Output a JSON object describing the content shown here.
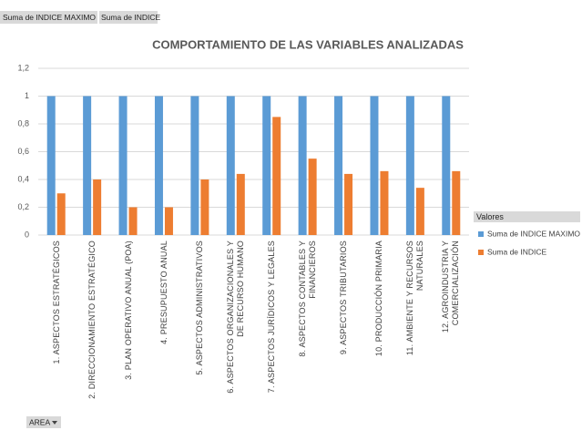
{
  "field_buttons": [
    "Suma de INDICE MAXIMO",
    "Suma de INDICE"
  ],
  "axis_field_button": "AREA",
  "chart_data": {
    "type": "bar",
    "title": "COMPORTAMIENTO DE LAS VARIABLES ANALIZADAS",
    "categories": [
      "1. ASPECTOS ESTRATÉGICOS",
      "2. DIRECCIONAMIENTO ESTRATÉGICO",
      "3. PLAN OPERATIVO ANUAL (POA)",
      "4. PRESUPUESTO ANUAL",
      "5. ASPECTOS ADMINISTRATIVOS",
      "6. ASPECTOS ORGANIZACIONALES Y DE RECURSO HUMANO",
      "7. ASPECTOS JURÍDICOS Y LEGALES",
      "8. ASPECTOS CONTABLES Y FINANCIEROS",
      "9. ASPECTOS TRIBUTARIOS",
      "10. PRODUCCIÓN PRIMARIA",
      "11. AMBIENTE Y RECURSOS NATURALES",
      "12. AGROINDUSTRIA Y COMERCIALIZACIÓN"
    ],
    "series": [
      {
        "name": "Suma de INDICE MAXIMO",
        "color": "#5b9bd5",
        "values": [
          1,
          1,
          1,
          1,
          1,
          1,
          1,
          1,
          1,
          1,
          1,
          1
        ]
      },
      {
        "name": "Suma de INDICE",
        "color": "#ed7d31",
        "values": [
          0.3,
          0.4,
          0.2,
          0.2,
          0.4,
          0.44,
          0.85,
          0.55,
          0.44,
          0.46,
          0.34,
          0.46
        ]
      }
    ],
    "ylim": [
      0,
      1.2
    ],
    "yticks": [
      0,
      {
        "value": 0.2,
        "label": "0,2"
      },
      {
        "value": 0.4,
        "label": "0,4"
      },
      {
        "value": 0.6,
        "label": "0,6"
      },
      {
        "value": 0.8,
        "label": "0,8"
      },
      1,
      {
        "value": 1.2,
        "label": "1,2"
      }
    ],
    "grid": true,
    "legend_title": "Valores",
    "legend": "right"
  }
}
